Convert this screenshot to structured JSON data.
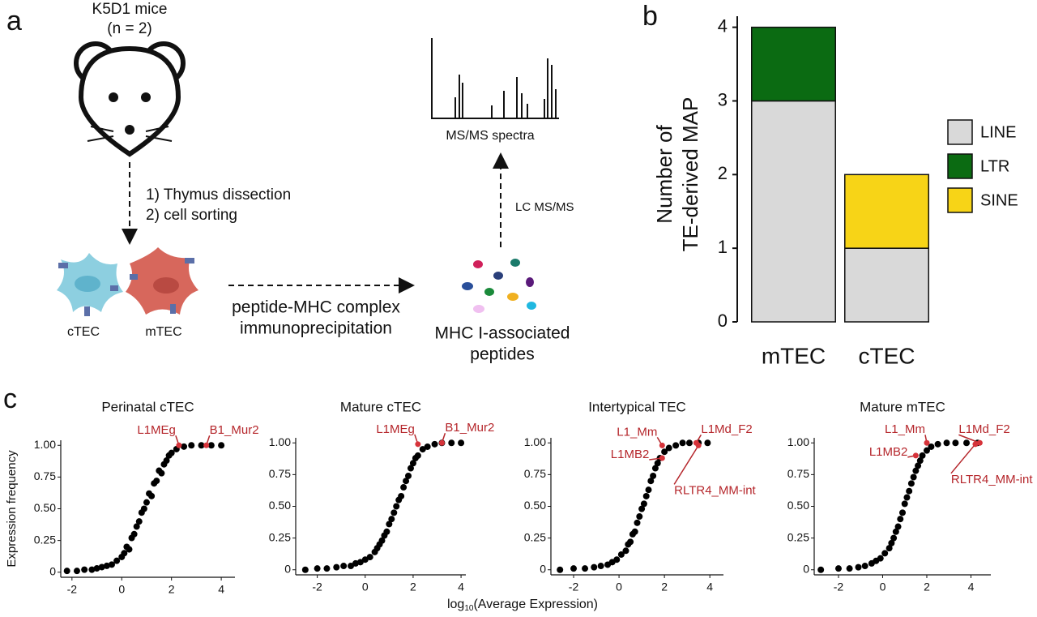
{
  "panel_labels": [
    "a",
    "b",
    "c"
  ],
  "diagram": {
    "mice": "K5D1 mice",
    "n": "(n = 2)",
    "step1": "1) Thymus dissection",
    "step2": "2) cell sorting",
    "cell1": "cTEC",
    "cell2": "mTEC",
    "ip1": "peptide-MHC complex",
    "ip2": "immunoprecipitation",
    "pep1": "MHC I-associated",
    "pep2": "peptides",
    "lcms": "LC MS/MS",
    "spectra": "MS/MS spectra"
  },
  "shared_xlabel": {
    "base": "log",
    "sub": "10",
    "rest": "(Average Expression)"
  },
  "chart_data": [
    {
      "type": "bar",
      "ylabel": [
        "Number of",
        "TE-derived MAP"
      ],
      "categories": [
        "mTEC",
        "cTEC"
      ],
      "series": [
        {
          "name": "LINE",
          "color": "#d9d9d9",
          "values": [
            3,
            1
          ]
        },
        {
          "name": "LTR",
          "color": "#0b6b12",
          "values": [
            1,
            0
          ]
        },
        {
          "name": "SINE",
          "color": "#f7d417",
          "values": [
            0,
            1
          ]
        }
      ],
      "ylim": [
        0,
        4.15
      ],
      "yticks": [
        0,
        1,
        2,
        3,
        4
      ],
      "legend": "right"
    },
    {
      "type": "scatter",
      "title": "Perinatal cTEC",
      "ylabel": "Expression frequency",
      "color": "#000000",
      "x": [
        -2.2,
        -1.8,
        -1.5,
        -1.2,
        -1,
        -0.8,
        -0.6,
        -0.4,
        -0.2,
        0,
        0.1,
        0.2,
        0.3,
        0.4,
        0.5,
        0.6,
        0.7,
        0.8,
        0.9,
        1,
        1.1,
        1.2,
        1.3,
        1.4,
        1.5,
        1.6,
        1.7,
        1.8,
        1.9,
        2,
        2.2,
        2.5,
        2.8,
        3.2,
        3.6,
        4
      ],
      "y": [
        0.01,
        0.01,
        0.02,
        0.02,
        0.03,
        0.04,
        0.05,
        0.06,
        0.09,
        0.12,
        0.15,
        0.2,
        0.18,
        0.27,
        0.3,
        0.36,
        0.4,
        0.47,
        0.5,
        0.55,
        0.62,
        0.6,
        0.7,
        0.72,
        0.8,
        0.78,
        0.85,
        0.88,
        0.92,
        0.94,
        0.97,
        0.99,
        1,
        1,
        1,
        1
      ],
      "xlim": [
        -2.45,
        4.55
      ],
      "ylim": [
        -0.04,
        1.04
      ],
      "xticks": [
        -2,
        0,
        2,
        4
      ],
      "yticks": [
        0,
        0.25,
        {
          "value": 0.5,
          "label": "0.50"
        },
        0.75,
        {
          "value": 1,
          "label": "1.00"
        }
      ],
      "annotations": [
        {
          "label": "L1MEg",
          "x": 2.3,
          "y": 1
        },
        {
          "label": "B1_Mur2",
          "x": 3.4,
          "y": 1
        }
      ]
    },
    {
      "type": "scatter",
      "title": "Mature cTEC",
      "color": "#000000",
      "x": [
        -2.5,
        -2,
        -1.6,
        -1.2,
        -0.9,
        -0.6,
        -0.4,
        -0.2,
        0,
        0.2,
        0.4,
        0.5,
        0.6,
        0.7,
        0.8,
        0.9,
        1,
        1.1,
        1.2,
        1.3,
        1.4,
        1.5,
        1.6,
        1.7,
        1.8,
        1.9,
        2,
        2.1,
        2.2,
        2.4,
        2.6,
        2.9,
        3.2,
        3.6,
        4
      ],
      "y": [
        0,
        0.01,
        0.01,
        0.02,
        0.03,
        0.03,
        0.05,
        0.06,
        0.08,
        0.1,
        0.14,
        0.17,
        0.2,
        0.23,
        0.27,
        0.3,
        0.36,
        0.4,
        0.45,
        0.5,
        0.55,
        0.58,
        0.65,
        0.7,
        0.74,
        0.8,
        0.84,
        0.88,
        0.9,
        0.95,
        0.97,
        0.99,
        1,
        1,
        1
      ],
      "xlim": [
        -2.9,
        4.2
      ],
      "ylim": [
        -0.04,
        1.04
      ],
      "xticks": [
        -2,
        0,
        2,
        4
      ],
      "yticks": [
        0,
        0.25,
        {
          "value": 0.5,
          "label": "0.50"
        },
        0.75,
        {
          "value": 1,
          "label": "1.00"
        }
      ],
      "annotations": [
        {
          "label": "L1MEg",
          "x": 2.2,
          "y": 0.99
        },
        {
          "label": "B1_Mur2",
          "x": 3.2,
          "y": 1
        }
      ]
    },
    {
      "type": "scatter",
      "title": "Intertypical TEC",
      "color": "#000000",
      "x": [
        -2.6,
        -2,
        -1.5,
        -1.1,
        -0.8,
        -0.5,
        -0.3,
        -0.1,
        0.1,
        0.3,
        0.4,
        0.5,
        0.6,
        0.7,
        0.8,
        0.9,
        1,
        1.1,
        1.2,
        1.3,
        1.4,
        1.5,
        1.6,
        1.7,
        1.8,
        2,
        2.2,
        2.5,
        2.8,
        3.1,
        3.5,
        3.9
      ],
      "y": [
        0,
        0.01,
        0.01,
        0.02,
        0.03,
        0.04,
        0.06,
        0.08,
        0.12,
        0.15,
        0.2,
        0.22,
        0.28,
        0.3,
        0.37,
        0.42,
        0.48,
        0.52,
        0.58,
        0.63,
        0.7,
        0.74,
        0.8,
        0.84,
        0.88,
        0.93,
        0.96,
        0.98,
        1,
        1,
        1,
        1
      ],
      "xlim": [
        -3.0,
        4.6
      ],
      "ylim": [
        -0.04,
        1.04
      ],
      "xticks": [
        -2,
        0,
        2,
        4
      ],
      "yticks": [
        0,
        0.25,
        {
          "value": 0.5,
          "label": "0.50"
        },
        0.75,
        {
          "value": 1,
          "label": "1.00"
        }
      ],
      "annotations": [
        {
          "label": "L1_Mm",
          "x": 1.9,
          "y": 0.98
        },
        {
          "label": "L1Md_F2",
          "x": 3.4,
          "y": 1
        },
        {
          "label": "L1MB2",
          "x": 1.9,
          "y": 0.88
        },
        {
          "label": "RLTR4_MM-int",
          "x": 3.5,
          "y": 0.98
        }
      ]
    },
    {
      "type": "scatter",
      "title": "Mature mTEC",
      "color": "#000000",
      "x": [
        -2.8,
        -2,
        -1.5,
        -1.1,
        -0.8,
        -0.5,
        -0.3,
        -0.1,
        0.1,
        0.3,
        0.4,
        0.5,
        0.6,
        0.7,
        0.8,
        0.9,
        1,
        1.1,
        1.2,
        1.3,
        1.4,
        1.5,
        1.6,
        1.7,
        1.8,
        2,
        2.2,
        2.5,
        2.9,
        3.3,
        3.8,
        4.3
      ],
      "y": [
        0,
        0.01,
        0.01,
        0.02,
        0.03,
        0.05,
        0.07,
        0.09,
        0.13,
        0.17,
        0.21,
        0.25,
        0.3,
        0.34,
        0.4,
        0.45,
        0.52,
        0.57,
        0.62,
        0.68,
        0.73,
        0.78,
        0.82,
        0.86,
        0.9,
        0.94,
        0.97,
        0.99,
        1,
        1,
        1,
        1
      ],
      "xlim": [
        -3.1,
        4.9
      ],
      "ylim": [
        -0.04,
        1.04
      ],
      "xticks": [
        -2,
        0,
        2,
        4
      ],
      "yticks": [
        0,
        0.25,
        {
          "value": 0.5,
          "label": "0.50"
        },
        0.75,
        {
          "value": 1,
          "label": "1.00"
        }
      ],
      "annotations": [
        {
          "label": "L1_Mm",
          "x": 2.0,
          "y": 1
        },
        {
          "label": "L1Md_F2",
          "x": 4.4,
          "y": 1
        },
        {
          "label": "L1MB2",
          "x": 1.5,
          "y": 0.9
        },
        {
          "label": "RLTR4_MM-int",
          "x": 4.2,
          "y": 0.99
        }
      ]
    }
  ]
}
